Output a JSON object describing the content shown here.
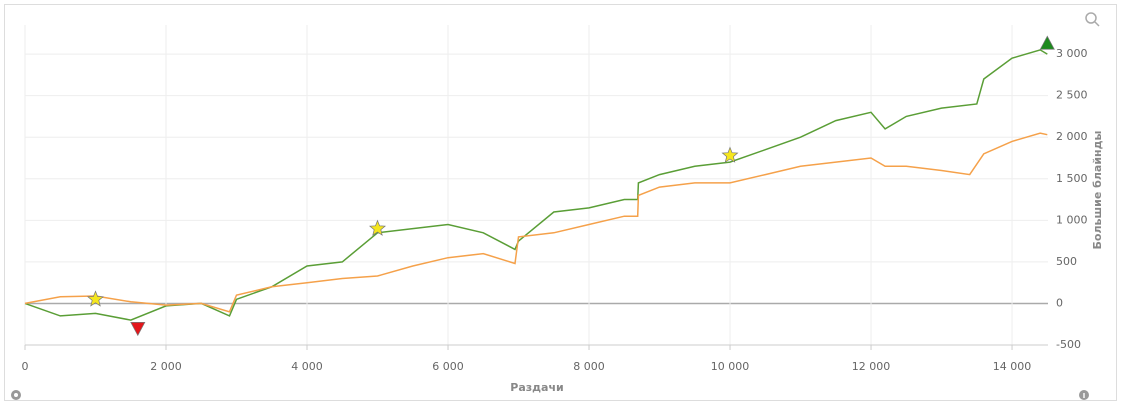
{
  "chart_data": {
    "type": "line",
    "x_label": "Раздачи",
    "y_label": "Большие блайнды",
    "xlim": [
      0,
      14510
    ],
    "ylim": [
      -500,
      3350
    ],
    "xticks": [
      0,
      {
        "value": 2000,
        "label": "2 000"
      },
      {
        "value": 4000,
        "label": "4 000"
      },
      {
        "value": 6000,
        "label": "6 000"
      },
      {
        "value": 8000,
        "label": "8 000"
      },
      {
        "value": 10000,
        "label": "10 000"
      },
      {
        "value": 12000,
        "label": "12 000"
      },
      {
        "value": 14000,
        "label": "14 000"
      }
    ],
    "yticks": [
      -500,
      0,
      500,
      {
        "value": 1000,
        "label": "1 000"
      },
      {
        "value": 1500,
        "label": "1 500"
      },
      {
        "value": 2000,
        "label": "2 000"
      },
      {
        "value": 2500,
        "label": "2 500"
      },
      {
        "value": 3000,
        "label": "3 000"
      }
    ],
    "grid": true,
    "series": [
      {
        "color": "#5a9e36",
        "x": [
          0,
          500,
          1000,
          1500,
          2000,
          2500,
          2900,
          3000,
          3500,
          4000,
          4500,
          5000,
          5500,
          6000,
          6500,
          6950,
          7000,
          7500,
          8000,
          8500,
          8690,
          8700,
          9000,
          9500,
          10000,
          10500,
          11000,
          11500,
          12000,
          12200,
          12500,
          13000,
          13500,
          13600,
          14000,
          14400,
          14500
        ],
        "values": [
          0,
          -150,
          -120,
          -200,
          -30,
          0,
          -150,
          50,
          200,
          450,
          500,
          850,
          900,
          950,
          850,
          650,
          750,
          1100,
          1150,
          1250,
          1250,
          1450,
          1550,
          1650,
          1700,
          1850,
          2000,
          2200,
          2300,
          2100,
          2250,
          2350,
          2400,
          2700,
          2950,
          3050,
          3000
        ]
      },
      {
        "color": "#f5a14a",
        "x": [
          0,
          500,
          1000,
          1500,
          2000,
          2500,
          2900,
          3000,
          3500,
          4000,
          4500,
          5000,
          5500,
          6000,
          6500,
          6950,
          7000,
          7500,
          8000,
          8500,
          8690,
          8700,
          9000,
          9500,
          10000,
          10500,
          11000,
          11500,
          12000,
          12200,
          12500,
          13000,
          13400,
          13600,
          14000,
          14400,
          14500
        ],
        "values": [
          0,
          80,
          90,
          20,
          -20,
          0,
          -100,
          100,
          200,
          250,
          300,
          330,
          450,
          550,
          600,
          480,
          800,
          850,
          950,
          1050,
          1050,
          1300,
          1400,
          1450,
          1450,
          1550,
          1650,
          1700,
          1750,
          1650,
          1650,
          1600,
          1550,
          1800,
          1950,
          2050,
          2030
        ]
      }
    ],
    "markers": [
      {
        "shape": "star",
        "color": "#f5e61e",
        "x": 1000,
        "y": 50
      },
      {
        "shape": "star",
        "color": "#f5e61e",
        "x": 5000,
        "y": 900
      },
      {
        "shape": "star",
        "color": "#f5e61e",
        "x": 10000,
        "y": 1780
      },
      {
        "shape": "triangle-down",
        "color": "#e3161b",
        "x": 1600,
        "y": -300
      },
      {
        "shape": "triangle-up",
        "color": "#1e8a1e",
        "x": 14500,
        "y": 3130
      }
    ]
  }
}
